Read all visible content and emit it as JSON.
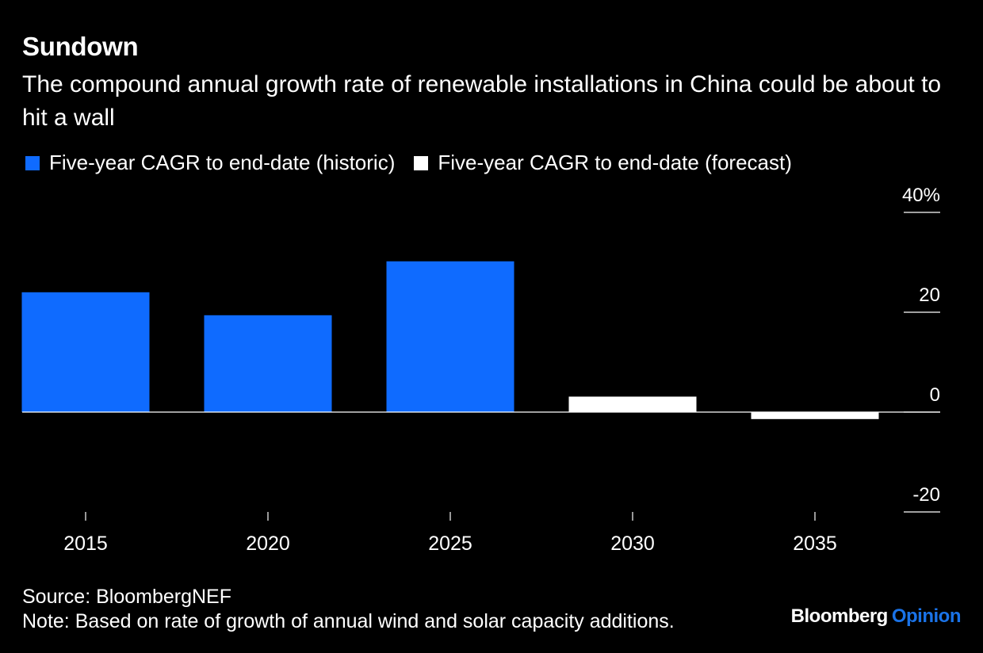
{
  "header": {
    "title": "Sundown",
    "subtitle": "The compound annual growth rate of renewable installations in China could be about to hit a wall"
  },
  "legend": {
    "items": [
      {
        "label": "Five-year CAGR to end-date (historic)",
        "color": "#0f6bff"
      },
      {
        "label": "Five-year CAGR to end-date (forecast)",
        "color": "#ffffff"
      }
    ]
  },
  "footer": {
    "source": "Source: BloombergNEF",
    "note": "Note: Based on rate of growth of annual wind and solar capacity additions.",
    "brand_main": "Bloomberg",
    "brand_accent": "Opinion"
  },
  "colors": {
    "background": "#000000",
    "historic": "#0f6bff",
    "forecast": "#ffffff",
    "brand_accent": "#1a73e8"
  },
  "chart_data": {
    "type": "bar",
    "categories": [
      "2015",
      "2020",
      "2025",
      "2030",
      "2035"
    ],
    "series": [
      {
        "name": "Five-year CAGR to end-date (historic)",
        "values": [
          24,
          19.4,
          30.2,
          null,
          null
        ]
      },
      {
        "name": "Five-year CAGR to end-date (forecast)",
        "values": [
          null,
          null,
          null,
          3.1,
          -1.4
        ]
      }
    ],
    "y_ticks": [
      "40%",
      "20",
      "0",
      "-20"
    ],
    "y_tick_values": [
      40,
      20,
      0,
      -20
    ],
    "ylim": [
      -20,
      40
    ],
    "y_axis_side": "right",
    "grid": false,
    "legend_position": "top-left"
  }
}
